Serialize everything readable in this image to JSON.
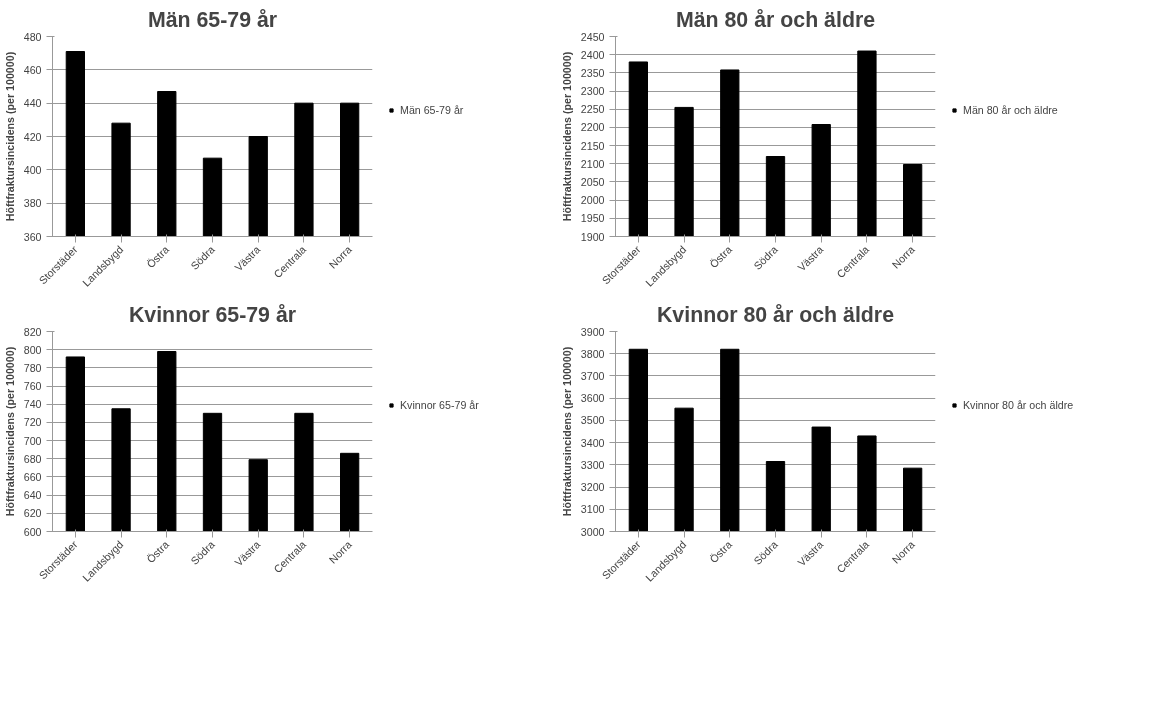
{
  "chart_data": [
    {
      "type": "bar",
      "title": "Män 65-79 år",
      "ylabel": "Höftfraktursincidens (per 100000)",
      "categories": [
        "Storstäder",
        "Landsbygd",
        "Östra",
        "Södra",
        "Västra",
        "Centrala",
        "Norra"
      ],
      "series": [
        {
          "name": "Män 65-79 år",
          "color": "#000000",
          "values": [
            471,
            428,
            447,
            407,
            420,
            440,
            440
          ]
        }
      ],
      "ylim": [
        360,
        480
      ],
      "yticks": [
        360,
        380,
        400,
        420,
        440,
        460,
        480
      ],
      "grid": "y",
      "legend": "right"
    },
    {
      "type": "bar",
      "title": "Män 80 år och äldre",
      "ylabel": "Höftfraktursincidens (per 100000)",
      "categories": [
        "Storstäder",
        "Landsbygd",
        "Östra",
        "Södra",
        "Västra",
        "Centrala",
        "Norra"
      ],
      "series": [
        {
          "name": "Män 80 år och äldre",
          "color": "#000000",
          "values": [
            2380,
            2255,
            2358,
            2120,
            2208,
            2410,
            2098
          ]
        }
      ],
      "ylim": [
        1900,
        2450
      ],
      "yticks": [
        1900,
        1950,
        2000,
        2050,
        2100,
        2150,
        2200,
        2250,
        2300,
        2350,
        2400,
        2450
      ],
      "grid": "y",
      "legend": "right"
    },
    {
      "type": "bar",
      "title": "Kvinnor 65-79 år",
      "ylabel": "Höftfraktursincidens (per 100000)",
      "categories": [
        "Storstäder",
        "Landsbygd",
        "Östra",
        "Södra",
        "Västra",
        "Centrala",
        "Norra"
      ],
      "series": [
        {
          "name": "Kvinnor 65-79 år",
          "color": "#000000",
          "values": [
            792,
            735,
            798,
            730,
            679,
            730,
            686
          ]
        }
      ],
      "ylim": [
        600,
        820
      ],
      "yticks": [
        600,
        620,
        640,
        660,
        680,
        700,
        720,
        740,
        760,
        780,
        800,
        820
      ],
      "grid": "y",
      "legend": "right"
    },
    {
      "type": "bar",
      "title": "Kvinnor 80 år och äldre",
      "ylabel": "Höftfraktursincidens (per 100000)",
      "categories": [
        "Storstäder",
        "Landsbygd",
        "Östra",
        "Södra",
        "Västra",
        "Centrala",
        "Norra"
      ],
      "series": [
        {
          "name": "Kvinnor 80 år och äldre",
          "color": "#000000",
          "values": [
            3820,
            3555,
            3820,
            3315,
            3470,
            3430,
            3285
          ]
        }
      ],
      "ylim": [
        3000,
        3900
      ],
      "yticks": [
        3000,
        3100,
        3200,
        3300,
        3400,
        3500,
        3600,
        3700,
        3800,
        3900
      ],
      "grid": "y",
      "legend": "right"
    }
  ]
}
